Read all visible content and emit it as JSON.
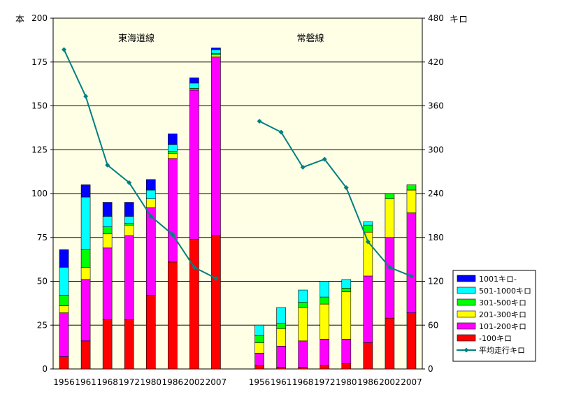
{
  "chart_data": {
    "type": "bar",
    "left_axis_unit": "本",
    "right_axis_unit": "キロ",
    "ylim": [
      0,
      200
    ],
    "y2lim": [
      0,
      480
    ],
    "yticks": [
      "0",
      "25",
      "50",
      "75",
      "100",
      "125",
      "150",
      "175",
      "200"
    ],
    "y2ticks": [
      "0",
      "60",
      "120",
      "180",
      "240",
      "300",
      "360",
      "420",
      "480"
    ],
    "groups": [
      {
        "name": "東海道線",
        "categories": [
          "1956",
          "1961",
          "1968",
          "1972",
          "1980",
          "1986",
          "2002",
          "2007"
        ],
        "stacks": {
          "-100キロ": [
            7,
            16,
            28,
            28,
            42,
            61,
            74,
            76
          ],
          "101-200キロ": [
            25,
            35,
            41,
            48,
            50,
            59,
            85,
            102
          ],
          "201-300キロ": [
            4,
            7,
            8,
            6,
            5,
            3,
            0,
            1
          ],
          "301-500キロ": [
            6,
            10,
            4,
            1,
            0,
            1,
            1,
            1
          ],
          "501-1000キロ": [
            16,
            30,
            6,
            4,
            5,
            4,
            3,
            2
          ],
          "1001キロ-": [
            10,
            7,
            8,
            8,
            6,
            6,
            3,
            1
          ]
        },
        "avg_km": [
          437,
          373,
          279,
          255,
          209,
          184,
          139,
          124
        ]
      },
      {
        "name": "常磐線",
        "categories": [
          "1956",
          "1961",
          "1968",
          "1972",
          "1980",
          "1986",
          "2002",
          "2007"
        ],
        "stacks": {
          "-100キロ": [
            2,
            1,
            1,
            2,
            3,
            15,
            29,
            32
          ],
          "101-200キロ": [
            7,
            12,
            15,
            15,
            14,
            38,
            46,
            57
          ],
          "201-300キロ": [
            6,
            10,
            19,
            20,
            27,
            25,
            22,
            13
          ],
          "301-500キロ": [
            4,
            3,
            3,
            4,
            2,
            4,
            3,
            3
          ],
          "501-1000キロ": [
            6,
            9,
            7,
            9,
            5,
            2,
            0,
            0
          ],
          "1001キロ-": [
            0,
            0,
            0,
            0,
            0,
            0,
            0,
            0
          ]
        },
        "avg_km": [
          339,
          324,
          276,
          287,
          248,
          174,
          139,
          127
        ]
      }
    ],
    "legend": [
      {
        "label": "1001キロ-",
        "color": "#0000ff"
      },
      {
        "label": "501-1000キロ",
        "color": "#00ffff"
      },
      {
        "label": "301-500キロ",
        "color": "#00ff00"
      },
      {
        "label": "201-300キロ",
        "color": "#ffff00"
      },
      {
        "label": "101-200キロ",
        "color": "#ff00ff"
      },
      {
        "label": "-100キロ",
        "color": "#ff0000"
      },
      {
        "label": "平均走行キロ",
        "color": "#008080"
      }
    ],
    "grid": true,
    "legend_position": "bottom-right",
    "colors": {
      "plot_bg": "#ffffe6",
      "line": "#008080"
    }
  }
}
